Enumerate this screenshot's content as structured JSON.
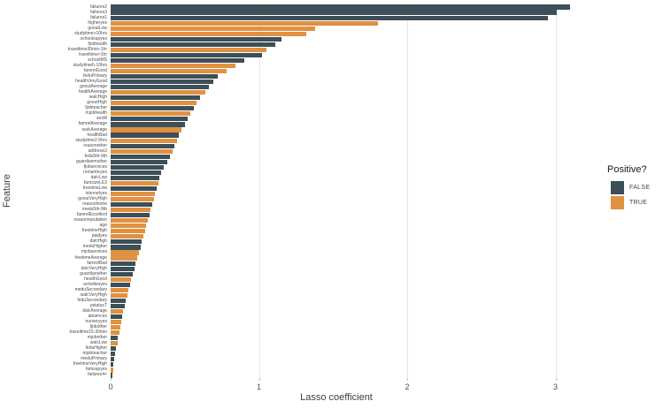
{
  "chart_data": {
    "type": "bar",
    "orientation": "horizontal",
    "title": "",
    "xlabel": "Lasso coefficient",
    "ylabel": "Feature",
    "xlim": [
      0,
      3.25
    ],
    "xticks": [
      "0",
      "1",
      "2",
      "3"
    ],
    "grid": "major vertical gridlines only",
    "legend": {
      "title": "Positive?",
      "position": "right",
      "entries": [
        {
          "label": "FALSE",
          "color": "#3d4f58"
        },
        {
          "label": "TRUE",
          "color": "#e09141"
        }
      ]
    },
    "bars": [
      {
        "feature": "failures2",
        "value": 3.1,
        "positive": false
      },
      {
        "feature": "failures3",
        "value": 3.01,
        "positive": false
      },
      {
        "feature": "failures1",
        "value": 2.95,
        "positive": false
      },
      {
        "feature": "higheryes",
        "value": 1.8,
        "positive": true
      },
      {
        "feature": "gooutLow",
        "value": 1.38,
        "positive": true
      },
      {
        "feature": "studytime>10hrs",
        "value": 1.32,
        "positive": true
      },
      {
        "feature": "schoolsupyes",
        "value": 1.15,
        "positive": false
      },
      {
        "feature": "fjobhealth",
        "value": 1.11,
        "positive": false
      },
      {
        "feature": "traveltime30min-1hr",
        "value": 1.05,
        "positive": true
      },
      {
        "feature": "traveltime>1hr",
        "value": 1.02,
        "positive": false
      },
      {
        "feature": "schoolMS",
        "value": 0.9,
        "positive": false
      },
      {
        "feature": "studytime5-10hrs",
        "value": 0.84,
        "positive": true
      },
      {
        "feature": "famrelGood",
        "value": 0.78,
        "positive": true
      },
      {
        "feature": "feduPrimary",
        "value": 0.72,
        "positive": false
      },
      {
        "feature": "healthVeryGood",
        "value": 0.69,
        "positive": false
      },
      {
        "feature": "gooutAverage",
        "value": 0.66,
        "positive": false
      },
      {
        "feature": "healthAverage",
        "value": 0.64,
        "positive": true
      },
      {
        "feature": "walcHigh",
        "value": 0.6,
        "positive": false
      },
      {
        "feature": "gooutHigh",
        "value": 0.58,
        "positive": true
      },
      {
        "feature": "fjobteacher",
        "value": 0.56,
        "positive": false
      },
      {
        "feature": "mjobhealth",
        "value": 0.54,
        "positive": true
      },
      {
        "feature": "sexM",
        "value": 0.52,
        "positive": false
      },
      {
        "feature": "famrelAverage",
        "value": 0.5,
        "positive": false
      },
      {
        "feature": "walcAverage",
        "value": 0.48,
        "positive": true
      },
      {
        "feature": "healthBad",
        "value": 0.46,
        "positive": false
      },
      {
        "feature": "studytime2-5hrs",
        "value": 0.45,
        "positive": true
      },
      {
        "feature": "reasonother",
        "value": 0.43,
        "positive": false
      },
      {
        "feature": "addressU",
        "value": 0.42,
        "positive": true
      },
      {
        "feature": "fedu5th-9th",
        "value": 0.4,
        "positive": false
      },
      {
        "feature": "guardianmother",
        "value": 0.38,
        "positive": false
      },
      {
        "feature": "fjobservices",
        "value": 0.36,
        "positive": false
      },
      {
        "feature": "romanticyes",
        "value": 0.34,
        "positive": false
      },
      {
        "feature": "dalcLow",
        "value": 0.33,
        "positive": false
      },
      {
        "feature": "famsizeLE3",
        "value": 0.32,
        "positive": true
      },
      {
        "feature": "freetimeLow",
        "value": 0.31,
        "positive": false
      },
      {
        "feature": "internetyes",
        "value": 0.3,
        "positive": true
      },
      {
        "feature": "gooutVeryHigh",
        "value": 0.29,
        "positive": true
      },
      {
        "feature": "reasonhome",
        "value": 0.28,
        "positive": false
      },
      {
        "feature": "medu5th-9th",
        "value": 0.27,
        "positive": true
      },
      {
        "feature": "famrelExcellent",
        "value": 0.26,
        "positive": false
      },
      {
        "feature": "reasonreputation",
        "value": 0.25,
        "positive": true
      },
      {
        "feature": "age",
        "value": 0.24,
        "positive": true
      },
      {
        "feature": "freetimeHigh",
        "value": 0.23,
        "positive": true
      },
      {
        "feature": "paidyes",
        "value": 0.22,
        "positive": true
      },
      {
        "feature": "dalcHigh",
        "value": 0.21,
        "positive": false
      },
      {
        "feature": "meduHigher",
        "value": 0.2,
        "positive": false
      },
      {
        "feature": "mjobservices",
        "value": 0.19,
        "positive": true
      },
      {
        "feature": "freetimeAverage",
        "value": 0.18,
        "positive": true
      },
      {
        "feature": "famrelBad",
        "value": 0.17,
        "positive": false
      },
      {
        "feature": "dalcVeryHigh",
        "value": 0.16,
        "positive": false
      },
      {
        "feature": "guardianother",
        "value": 0.15,
        "positive": false
      },
      {
        "feature": "healthGood",
        "value": 0.14,
        "positive": true
      },
      {
        "feature": "activitiesyes",
        "value": 0.13,
        "positive": false
      },
      {
        "feature": "meduSecondary",
        "value": 0.12,
        "positive": true
      },
      {
        "feature": "walcVeryHigh",
        "value": 0.115,
        "positive": true
      },
      {
        "feature": "feduSecondary",
        "value": 0.1,
        "positive": false
      },
      {
        "feature": "pstatusT",
        "value": 0.095,
        "positive": false
      },
      {
        "feature": "dalcAverage",
        "value": 0.085,
        "positive": true
      },
      {
        "feature": "absences",
        "value": 0.075,
        "positive": false
      },
      {
        "feature": "nurseryyes",
        "value": 0.07,
        "positive": true
      },
      {
        "feature": "fjobother",
        "value": 0.065,
        "positive": true
      },
      {
        "feature": "traveltime15-30min",
        "value": 0.06,
        "positive": true
      },
      {
        "feature": "mjobother",
        "value": 0.05,
        "positive": false
      },
      {
        "feature": "walcLow",
        "value": 0.045,
        "positive": true
      },
      {
        "feature": "feduHigher",
        "value": 0.035,
        "positive": false
      },
      {
        "feature": "mjobteacher",
        "value": 0.03,
        "positive": false
      },
      {
        "feature": "meduPrimary",
        "value": 0.025,
        "positive": false
      },
      {
        "feature": "freetimeVeryHigh",
        "value": 0.02,
        "positive": false
      },
      {
        "feature": "famsupyes",
        "value": 0.015,
        "positive": true
      },
      {
        "feature": "failures4+",
        "value": 0.01,
        "positive": false
      }
    ]
  },
  "colors": {
    "false_bar": "#3d4f58",
    "true_bar": "#e09141",
    "gridline": "#e6e6e6",
    "axis_text": "#4d4d4d",
    "background": "#ffffff"
  }
}
